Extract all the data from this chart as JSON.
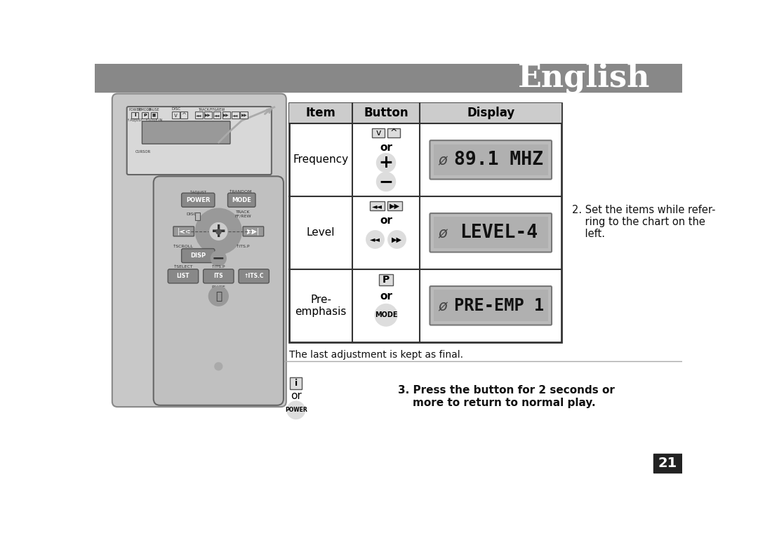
{
  "title": "English",
  "title_bg": "#888888",
  "title_color": "#ffffff",
  "title_fontsize": 32,
  "content_bg": "#ffffff",
  "row_items": [
    "Frequency",
    "Level",
    "Pre-\nemphasis"
  ],
  "display_texts": [
    "89.1 MHZ",
    "LEVEL-4",
    "PRE-EMP 1"
  ],
  "note1": "The last adjustment is kept as final.",
  "note2": "2. Set the items while refer-\n    ring to the chart on the\n    left.",
  "note3": "3. Press the button for 2 seconds or\n    more to return to normal play.",
  "page_num": "21",
  "page_num_bg": "#222222",
  "page_num_color": "#ffffff",
  "remote_panel_color": "#c8c8c8",
  "remote_panel_edge": "#888888",
  "remote_unit_bg": "#e0e0e0",
  "remote_unit_edge": "#666666",
  "btn_face": "#dddddd",
  "btn_edge": "#555555",
  "table_header_bg": "#cccccc",
  "table_border": "#333333",
  "lcd_outer": "#bbbbbb",
  "lcd_inner": "#b0b0b0"
}
